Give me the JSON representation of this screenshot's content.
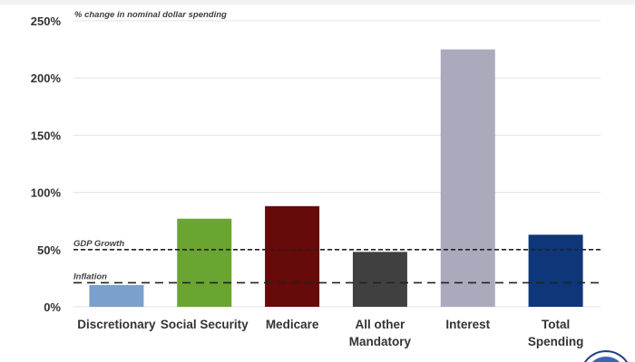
{
  "chart_data": {
    "type": "bar",
    "title": "% change in nominal dollar spending",
    "xlabel": "",
    "ylabel": "",
    "ylim": [
      0,
      250
    ],
    "yticks": [
      "0%",
      "50%",
      "100%",
      "150%",
      "200%",
      "250%"
    ],
    "ytick_values": [
      0,
      50,
      100,
      150,
      200,
      250
    ],
    "grid": true,
    "categories": [
      [
        "Discretionary"
      ],
      [
        "Social Security"
      ],
      [
        "Medicare"
      ],
      [
        "All other",
        "Mandatory"
      ],
      [
        "Interest"
      ],
      [
        "Total",
        "Spending"
      ]
    ],
    "values": [
      19,
      77,
      88,
      48,
      225,
      63
    ],
    "colors": [
      "#7ba0cc",
      "#6aa431",
      "#660a0a",
      "#404040",
      "#a9abbd",
      "#0e3678"
    ],
    "reference_lines": [
      {
        "label": "GDP Growth",
        "value": 50,
        "style": "short-dash"
      },
      {
        "label": "Inflation",
        "value": 21,
        "style": "long-dash"
      }
    ]
  }
}
